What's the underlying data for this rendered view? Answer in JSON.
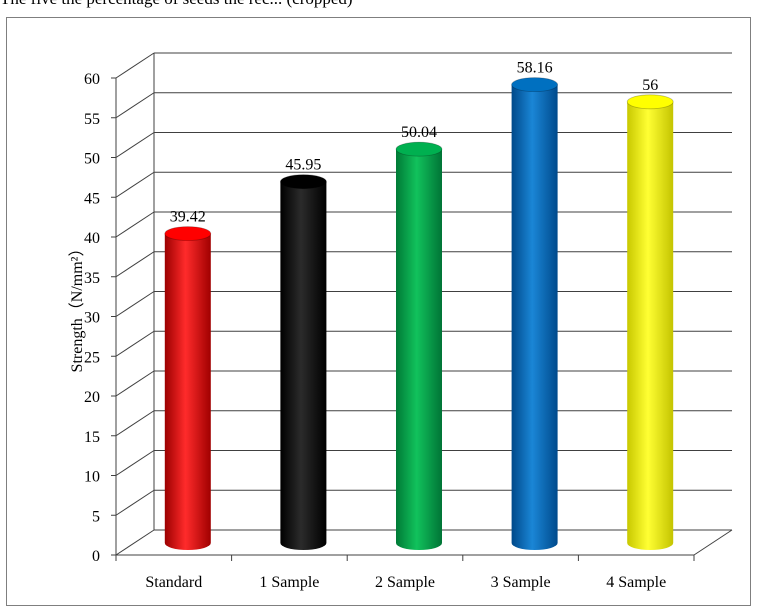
{
  "page": {
    "top_text": "The five the percentage of seeds the rec... (cropped)"
  },
  "chart_data": {
    "type": "bar",
    "title": "",
    "xlabel": "",
    "ylabel": "Strength（N/mm²）",
    "ylim": [
      0,
      60
    ],
    "yticks": [
      0,
      5,
      10,
      15,
      20,
      25,
      30,
      35,
      40,
      45,
      50,
      55,
      60
    ],
    "categories": [
      "Standard",
      "1 Sample",
      "2 Sample",
      "3 Sample",
      "4 Sample"
    ],
    "values": [
      39.42,
      45.95,
      50.04,
      58.16,
      56
    ],
    "data_labels": [
      "39.42",
      "45.95",
      "50.04",
      "58.16",
      "56"
    ],
    "colors": [
      "#ff0000",
      "#000000",
      "#00b050",
      "#0070c0",
      "#ffff00"
    ],
    "grid": true,
    "style": "3d-cylinder"
  }
}
